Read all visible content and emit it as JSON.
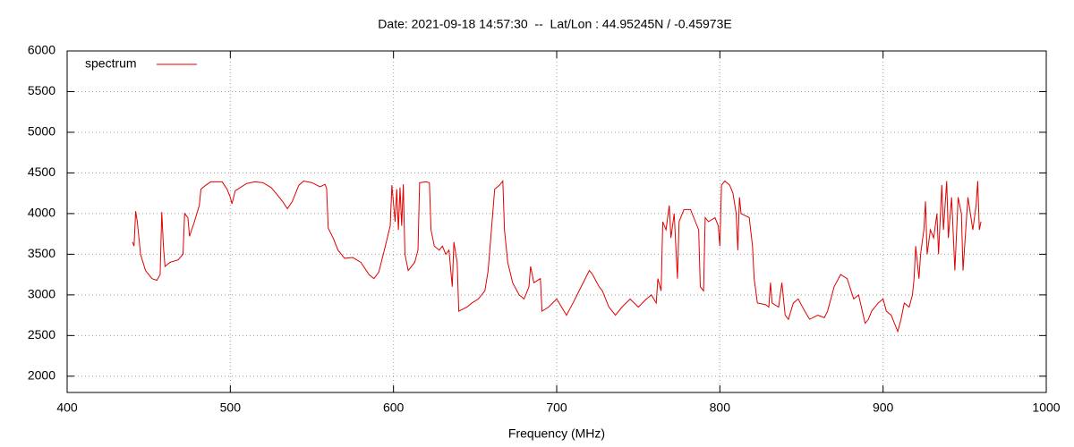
{
  "chart_data": {
    "type": "line",
    "title": "Date: 2021-09-18 14:57:30  --  Lat/Lon : 44.95245N / -0.45973E",
    "x_label": "Frequency (MHz)",
    "xlim": [
      400,
      1000
    ],
    "xticks": [
      400,
      500,
      600,
      700,
      800,
      900,
      1000
    ],
    "ylim": [
      1800,
      6000
    ],
    "yticks": [
      2000,
      2500,
      3000,
      3500,
      4000,
      4500,
      5000,
      5500,
      6000
    ],
    "grid": true,
    "legend": "top-left",
    "x": [
      440,
      441,
      442,
      443,
      445,
      448,
      452,
      455,
      457,
      458,
      459,
      460,
      463,
      468,
      471,
      472,
      474,
      475,
      478,
      481,
      482,
      485,
      488,
      495,
      498,
      500,
      501,
      503,
      510,
      515,
      520,
      525,
      528,
      532,
      535,
      538,
      542,
      545,
      550,
      555,
      558,
      559,
      560,
      563,
      566,
      570,
      575,
      580,
      585,
      588,
      591,
      595,
      598,
      599,
      601,
      602,
      603,
      604,
      605,
      606,
      607,
      609,
      613,
      615,
      616,
      620,
      622,
      623,
      625,
      628,
      630,
      632,
      634,
      636,
      637,
      639,
      640,
      645,
      648,
      652,
      656,
      658,
      660,
      662,
      665,
      667,
      668,
      670,
      673,
      677,
      680,
      683,
      684,
      686,
      690,
      691,
      695,
      700,
      703,
      706,
      710,
      715,
      720,
      722,
      726,
      728,
      732,
      736,
      740,
      745,
      750,
      755,
      758,
      761,
      762,
      764,
      765,
      767,
      769,
      770,
      772,
      774,
      775,
      778,
      782,
      785,
      787,
      788,
      790,
      791,
      793,
      797,
      799,
      800,
      801,
      803,
      806,
      808,
      810,
      811,
      812,
      813,
      818,
      820,
      821,
      823,
      828,
      830,
      831,
      832,
      836,
      838,
      840,
      842,
      845,
      848,
      852,
      855,
      860,
      864,
      866,
      870,
      874,
      878,
      882,
      885,
      889,
      891,
      893,
      897,
      900,
      902,
      905,
      909,
      911,
      913,
      916,
      918,
      919,
      920,
      922,
      923,
      925,
      926,
      927,
      929,
      931,
      933,
      934,
      936,
      937,
      939,
      940,
      942,
      944,
      946,
      948,
      949,
      952,
      955,
      957,
      958,
      959,
      960
    ],
    "series": [
      {
        "name": "spectrum",
        "color": "#e00000",
        "values": [
          3650,
          3600,
          4030,
          3900,
          3500,
          3300,
          3200,
          3180,
          3250,
          4020,
          3600,
          3350,
          3400,
          3430,
          3500,
          4000,
          3950,
          3720,
          3900,
          4100,
          4300,
          4350,
          4390,
          4390,
          4300,
          4200,
          4120,
          4280,
          4370,
          4390,
          4380,
          4320,
          4250,
          4150,
          4060,
          4150,
          4350,
          4400,
          4380,
          4330,
          4360,
          4310,
          3820,
          3700,
          3550,
          3450,
          3460,
          3400,
          3250,
          3200,
          3280,
          3600,
          3850,
          4350,
          3900,
          4300,
          3800,
          4320,
          3850,
          4360,
          3500,
          3300,
          3400,
          3550,
          4380,
          4390,
          4380,
          3800,
          3600,
          3550,
          3600,
          3500,
          3550,
          3100,
          3650,
          3400,
          2800,
          2850,
          2900,
          2950,
          3050,
          3300,
          3800,
          4300,
          4350,
          4400,
          3800,
          3400,
          3150,
          3000,
          2950,
          3100,
          3350,
          3150,
          3200,
          2800,
          2850,
          2950,
          2850,
          2750,
          2900,
          3100,
          3300,
          3250,
          3100,
          3050,
          2850,
          2750,
          2850,
          2950,
          2850,
          2950,
          3000,
          2900,
          3200,
          3050,
          3900,
          3800,
          4100,
          3700,
          4000,
          3200,
          3900,
          4050,
          4050,
          3900,
          3800,
          3100,
          3050,
          3950,
          3900,
          3950,
          3850,
          3600,
          4350,
          4400,
          4350,
          4250,
          4000,
          3550,
          4200,
          4000,
          3950,
          3600,
          3200,
          2900,
          2880,
          2850,
          3150,
          2900,
          2850,
          3150,
          2750,
          2700,
          2900,
          2950,
          2800,
          2700,
          2750,
          2720,
          2800,
          3100,
          3250,
          3200,
          2950,
          3000,
          2650,
          2700,
          2800,
          2900,
          2950,
          2800,
          2750,
          2550,
          2700,
          2900,
          2850,
          3000,
          3200,
          3600,
          3200,
          3500,
          3800,
          4150,
          3500,
          3800,
          3700,
          4000,
          3500,
          4350,
          3800,
          4400,
          3700,
          4200,
          3300,
          4200,
          4000,
          3300,
          4200,
          3800,
          4100,
          4400,
          3800,
          3900
        ]
      }
    ]
  }
}
